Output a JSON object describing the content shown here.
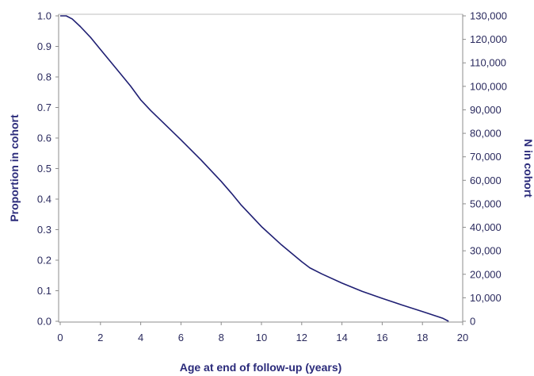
{
  "chart_data": {
    "type": "line",
    "xlabel": "Age at end of follow-up (years)",
    "ylabel": "Proportion in cohort",
    "y2label": "N in cohort",
    "xlim": [
      0,
      20
    ],
    "ylim": [
      0,
      1
    ],
    "y2lim": [
      0,
      130000
    ],
    "x_ticks": [
      "0",
      "2",
      "4",
      "6",
      "8",
      "10",
      "12",
      "14",
      "16",
      "18",
      "20"
    ],
    "y_ticks": [
      "0.0",
      "0.1",
      "0.2",
      "0.3",
      "0.4",
      "0.5",
      "0.6",
      "0.7",
      "0.8",
      "0.9",
      "1.0"
    ],
    "y2_ticks": [
      "0",
      "10,000",
      "20,000",
      "30,000",
      "40,000",
      "50,000",
      "60,000",
      "70,000",
      "80,000",
      "90,000",
      "100,000",
      "110,000",
      "120,000",
      "130,000"
    ],
    "grid": false,
    "line_color": "#1f1f73",
    "series": [
      {
        "x": [
          0,
          0.3,
          0.6,
          1,
          1.5,
          2,
          2.5,
          3,
          3.5,
          4,
          4.5,
          5,
          6,
          7,
          8,
          8.5,
          9,
          10,
          11,
          12,
          12.4,
          13,
          14,
          15,
          16,
          17,
          18,
          19,
          19.3
        ],
        "y": [
          1.0,
          1.0,
          0.99,
          0.965,
          0.93,
          0.89,
          0.85,
          0.81,
          0.77,
          0.725,
          0.69,
          0.658,
          0.594,
          0.528,
          0.458,
          0.42,
          0.38,
          0.31,
          0.25,
          0.195,
          0.175,
          0.155,
          0.125,
          0.098,
          0.075,
          0.053,
          0.032,
          0.01,
          0.0
        ]
      }
    ]
  }
}
